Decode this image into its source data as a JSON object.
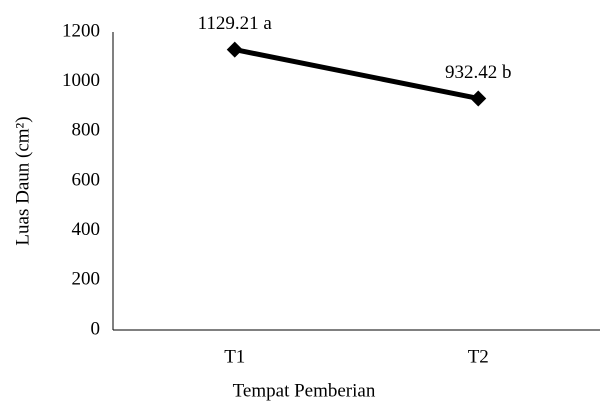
{
  "chart_data": {
    "type": "line",
    "x_label": "Tempat Pemberian",
    "y_label": "Luas Daun (cm²)",
    "categories": [
      "T1",
      "T2"
    ],
    "values": [
      1129.21,
      932.42
    ],
    "value_labels": [
      "1129.21 a",
      "932.42 b"
    ],
    "color": "#000000",
    "ylim": [
      0,
      1200
    ],
    "yticks": [
      0,
      200,
      400,
      600,
      800,
      1000,
      1200
    ],
    "grid": false
  }
}
